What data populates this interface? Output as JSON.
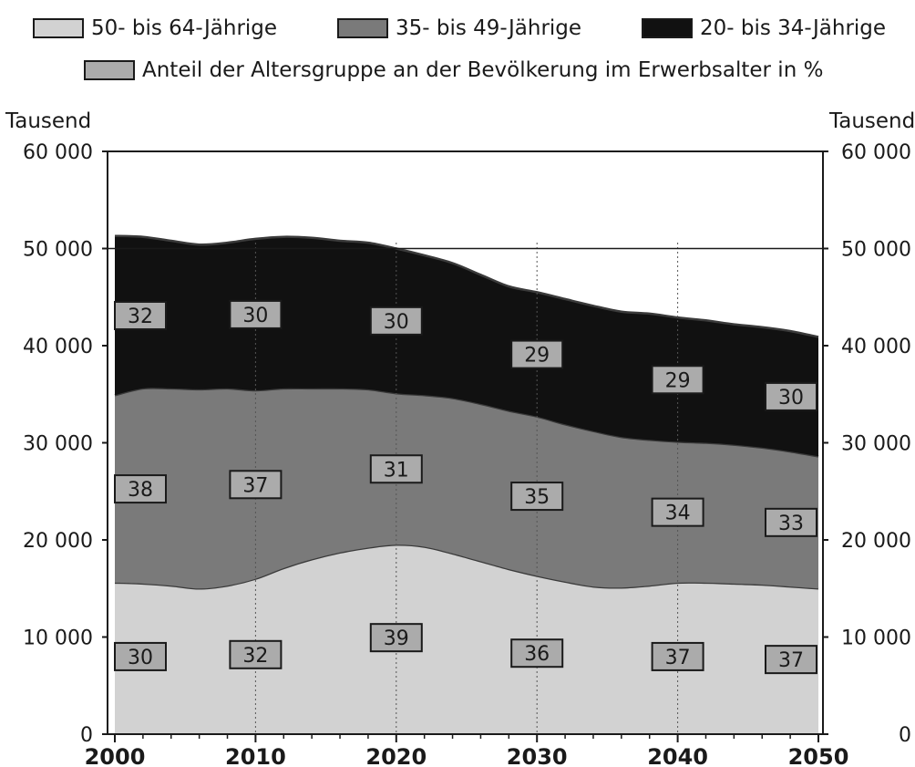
{
  "legend": [
    {
      "label": "50- bis 64-Jährige",
      "color": "#d2d2d2"
    },
    {
      "label": "35- bis 49-Jährige",
      "color": "#7a7a7a"
    },
    {
      "label": "20- bis 34-Jährige",
      "color": "#111111"
    },
    {
      "label": "Anteil der Altersgruppe an der Bevölkerung im Erwerbsalter in %",
      "color": "#ababab"
    }
  ],
  "chart_data": {
    "type": "area",
    "stacked": true,
    "x": [
      2000,
      2002,
      2004,
      2006,
      2008,
      2010,
      2012,
      2014,
      2016,
      2018,
      2020,
      2022,
      2024,
      2026,
      2028,
      2030,
      2032,
      2034,
      2036,
      2038,
      2040,
      2042,
      2044,
      2046,
      2048,
      2050
    ],
    "series": [
      {
        "name": "50- bis 64-Jährige",
        "color": "#d2d2d2",
        "values": [
          15600,
          15500,
          15300,
          15000,
          15300,
          16000,
          17100,
          18000,
          18700,
          19200,
          19500,
          19300,
          18600,
          17800,
          17000,
          16300,
          15700,
          15200,
          15100,
          15300,
          15600,
          15600,
          15500,
          15400,
          15200,
          15000
        ]
      },
      {
        "name": "35- bis 49-Jährige",
        "color": "#7a7a7a",
        "values": [
          19300,
          20100,
          20300,
          20500,
          20300,
          19400,
          18500,
          17600,
          16900,
          16300,
          15600,
          15600,
          16000,
          16200,
          16300,
          16400,
          16200,
          16000,
          15500,
          15000,
          14500,
          14400,
          14300,
          14100,
          13900,
          13600
        ]
      },
      {
        "name": "20- bis 34-Jährige",
        "color": "#111111",
        "values": [
          16400,
          15600,
          15200,
          14900,
          15000,
          15600,
          15600,
          15500,
          15200,
          15100,
          14900,
          14400,
          13900,
          13300,
          12800,
          12800,
          12900,
          12900,
          12900,
          13000,
          12800,
          12600,
          12400,
          12400,
          12400,
          12300
        ]
      }
    ],
    "share_labels": {
      "x": [
        2000,
        2010,
        2020,
        2030,
        2040,
        2050
      ],
      "50- bis 64-Jährige": [
        30,
        32,
        39,
        36,
        37,
        37
      ],
      "35- bis 49-Jährige": [
        38,
        37,
        31,
        35,
        34,
        33
      ],
      "20- bis 34-Jährige": [
        32,
        30,
        30,
        29,
        29,
        30
      ]
    },
    "ylabel_left": "Tausend",
    "ylabel_right": "Tausend",
    "y_ticks": [
      "0",
      "10 000",
      "20 000",
      "30 000",
      "40 000",
      "50 000",
      "60 000"
    ],
    "x_ticks": [
      "2000",
      "2010",
      "2020",
      "2030",
      "2040",
      "2050"
    ],
    "ylim": [
      0,
      60000
    ],
    "xlim": [
      2000,
      2050
    ],
    "grid": "horizontal line at 50 000, vertical dotted lines each decade"
  }
}
